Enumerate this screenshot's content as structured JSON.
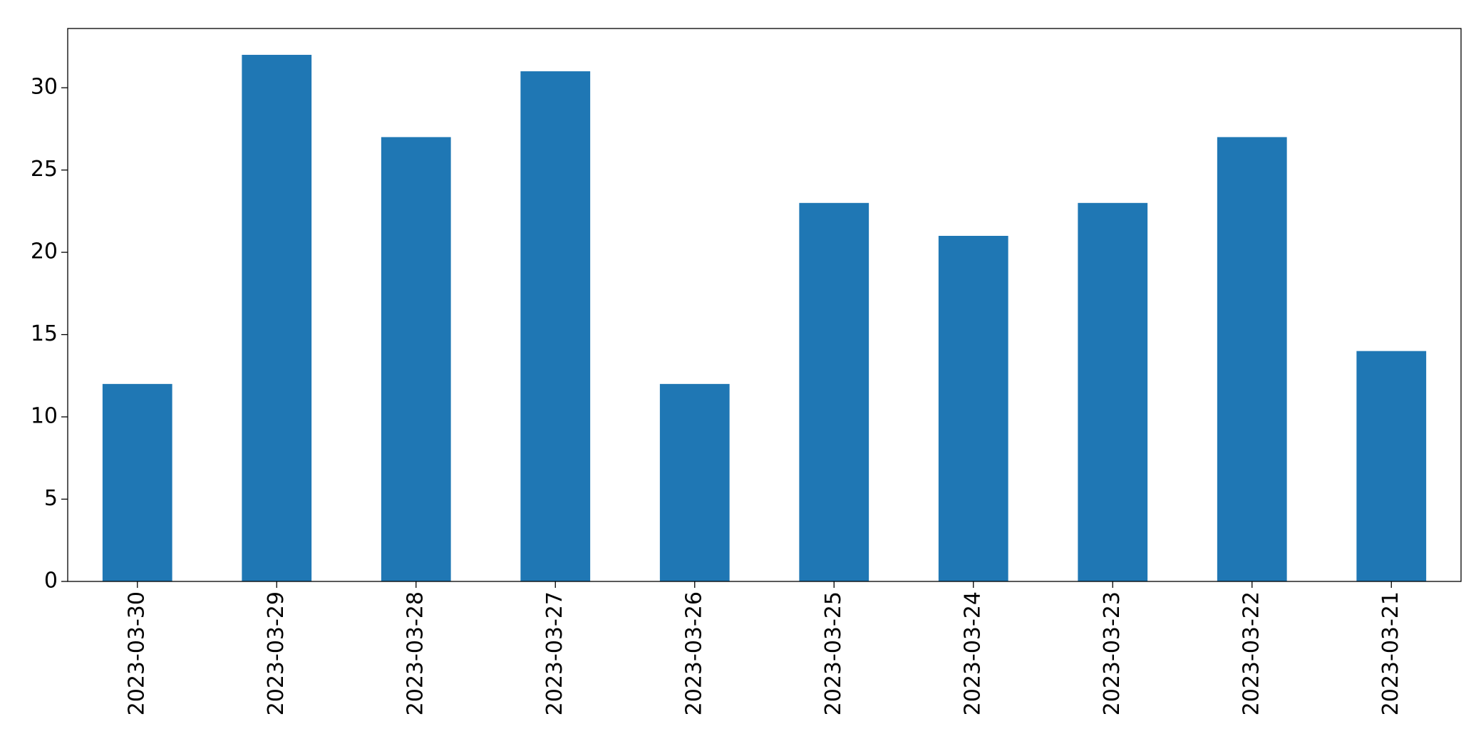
{
  "chart_data": {
    "type": "bar",
    "categories": [
      "2023-03-30",
      "2023-03-29",
      "2023-03-28",
      "2023-03-27",
      "2023-03-26",
      "2023-03-25",
      "2023-03-24",
      "2023-03-23",
      "2023-03-22",
      "2023-03-21"
    ],
    "values": [
      12,
      32,
      27,
      31,
      12,
      23,
      21,
      23,
      27,
      14
    ],
    "color": "#1f77b4",
    "ylim": [
      0,
      33.6
    ],
    "yticks": [
      0,
      5,
      10,
      15,
      20,
      25,
      30
    ],
    "grid": false
  }
}
